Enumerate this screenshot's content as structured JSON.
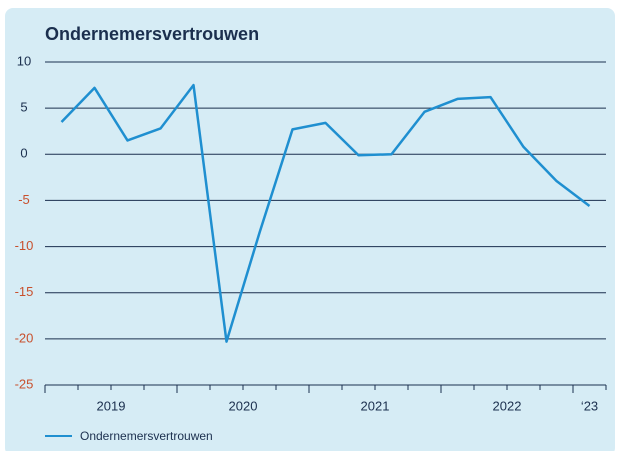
{
  "chart_data": {
    "type": "line",
    "title": "Ondernemersvertrouwen",
    "categories": [
      null,
      null,
      null,
      null,
      null,
      null,
      null,
      null,
      null,
      null,
      null,
      null,
      null,
      null,
      null,
      null,
      null
    ],
    "x_groups": [
      "2019",
      "2020",
      "2021",
      "2022",
      "‘23"
    ],
    "series": [
      {
        "name": "Ondernemersvertrouwen",
        "color": "#1f8fd0",
        "values": [
          3.5,
          7.2,
          1.5,
          2.8,
          7.5,
          -20.3,
          -8.5,
          2.7,
          3.4,
          -0.1,
          0,
          4.6,
          6.0,
          6.2,
          0.8,
          -2.9,
          -5.6
        ]
      }
    ],
    "ylim": [
      -25,
      10
    ],
    "yticks": [
      -25,
      -20,
      -15,
      -10,
      -5,
      0,
      5,
      10
    ],
    "grid": true,
    "negative_tick_color": "#c8502d"
  }
}
